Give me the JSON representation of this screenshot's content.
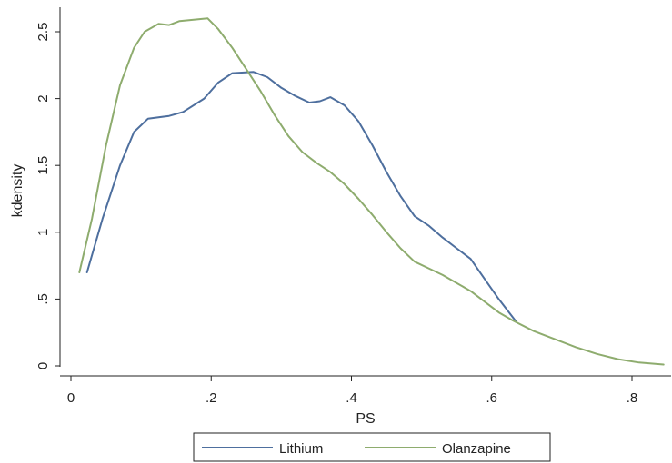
{
  "chart_data": {
    "type": "line",
    "xlabel": "PS",
    "ylabel": "kdensity",
    "xlim": [
      0,
      0.85
    ],
    "ylim": [
      0,
      2.6
    ],
    "x_ticks": [
      {
        "value": 0,
        "label": "0"
      },
      {
        "value": 0.2,
        "label": ".2"
      },
      {
        "value": 0.4,
        "label": ".4"
      },
      {
        "value": 0.6,
        "label": ".6"
      },
      {
        "value": 0.8,
        "label": ".8"
      }
    ],
    "y_ticks": [
      {
        "value": 0,
        "label": "0"
      },
      {
        "value": 0.5,
        "label": ".5"
      },
      {
        "value": 1,
        "label": "1"
      },
      {
        "value": 1.5,
        "label": "1.5"
      },
      {
        "value": 2,
        "label": "2"
      },
      {
        "value": 2.5,
        "label": "2.5"
      }
    ],
    "grid": false,
    "legend_position": "bottom",
    "series": [
      {
        "name": "Lithium",
        "color": "#4e6f9e",
        "points": [
          [
            0.023,
            0.7
          ],
          [
            0.045,
            1.1
          ],
          [
            0.07,
            1.5
          ],
          [
            0.09,
            1.75
          ],
          [
            0.11,
            1.85
          ],
          [
            0.14,
            1.87
          ],
          [
            0.16,
            1.9
          ],
          [
            0.19,
            2.0
          ],
          [
            0.21,
            2.12
          ],
          [
            0.23,
            2.19
          ],
          [
            0.26,
            2.2
          ],
          [
            0.28,
            2.16
          ],
          [
            0.3,
            2.08
          ],
          [
            0.32,
            2.02
          ],
          [
            0.34,
            1.97
          ],
          [
            0.355,
            1.98
          ],
          [
            0.37,
            2.01
          ],
          [
            0.39,
            1.95
          ],
          [
            0.41,
            1.83
          ],
          [
            0.43,
            1.65
          ],
          [
            0.45,
            1.45
          ],
          [
            0.47,
            1.27
          ],
          [
            0.49,
            1.12
          ],
          [
            0.51,
            1.05
          ],
          [
            0.53,
            0.96
          ],
          [
            0.55,
            0.88
          ],
          [
            0.57,
            0.8
          ],
          [
            0.59,
            0.65
          ],
          [
            0.61,
            0.5
          ],
          [
            0.635,
            0.33
          ]
        ]
      },
      {
        "name": "Olanzapine",
        "color": "#8eac6e",
        "points": [
          [
            0.012,
            0.7
          ],
          [
            0.03,
            1.1
          ],
          [
            0.05,
            1.65
          ],
          [
            0.07,
            2.1
          ],
          [
            0.09,
            2.38
          ],
          [
            0.105,
            2.5
          ],
          [
            0.125,
            2.56
          ],
          [
            0.14,
            2.55
          ],
          [
            0.155,
            2.58
          ],
          [
            0.175,
            2.59
          ],
          [
            0.195,
            2.6
          ],
          [
            0.21,
            2.52
          ],
          [
            0.23,
            2.38
          ],
          [
            0.25,
            2.22
          ],
          [
            0.27,
            2.06
          ],
          [
            0.29,
            1.88
          ],
          [
            0.31,
            1.72
          ],
          [
            0.33,
            1.6
          ],
          [
            0.35,
            1.52
          ],
          [
            0.37,
            1.45
          ],
          [
            0.39,
            1.36
          ],
          [
            0.41,
            1.25
          ],
          [
            0.43,
            1.13
          ],
          [
            0.45,
            1.0
          ],
          [
            0.47,
            0.88
          ],
          [
            0.49,
            0.78
          ],
          [
            0.51,
            0.73
          ],
          [
            0.53,
            0.68
          ],
          [
            0.55,
            0.62
          ],
          [
            0.57,
            0.56
          ],
          [
            0.59,
            0.48
          ],
          [
            0.61,
            0.4
          ],
          [
            0.63,
            0.34
          ],
          [
            0.66,
            0.26
          ],
          [
            0.69,
            0.2
          ],
          [
            0.72,
            0.14
          ],
          [
            0.75,
            0.09
          ],
          [
            0.78,
            0.05
          ],
          [
            0.81,
            0.025
          ],
          [
            0.845,
            0.01
          ]
        ]
      }
    ]
  }
}
